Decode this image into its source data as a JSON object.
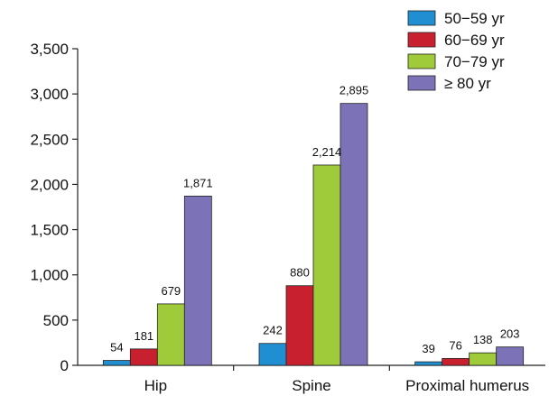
{
  "chart_data": {
    "type": "bar",
    "categories": [
      "Hip",
      "Spine",
      "Proximal humerus"
    ],
    "series": [
      {
        "name": "50−59 yr",
        "color": "#1f8fd1",
        "values": [
          54,
          242,
          39
        ],
        "labels": [
          "54",
          "242",
          "39"
        ]
      },
      {
        "name": "60−69 yr",
        "color": "#c8202f",
        "values": [
          181,
          880,
          76
        ],
        "labels": [
          "181",
          "880",
          "76"
        ]
      },
      {
        "name": "70−79 yr",
        "color": "#9fcb3b",
        "values": [
          679,
          2214,
          138
        ],
        "labels": [
          "679",
          "2,214",
          "138"
        ]
      },
      {
        "name": "≥ 80 yr",
        "color": "#7b72b8",
        "values": [
          1871,
          2895,
          203
        ],
        "labels": [
          "1,871",
          "2,895",
          "203"
        ]
      }
    ],
    "yticks": [
      0,
      500,
      1000,
      1500,
      2000,
      2500,
      3000,
      3500
    ],
    "yticklabels": [
      "0",
      "500",
      "1,000",
      "1,500",
      "2,000",
      "2,500",
      "3,000",
      "3,500"
    ],
    "ylim": [
      0,
      3500
    ],
    "title": "",
    "xlabel": "",
    "ylabel": "",
    "legend_position": "top-right",
    "grid": false
  }
}
